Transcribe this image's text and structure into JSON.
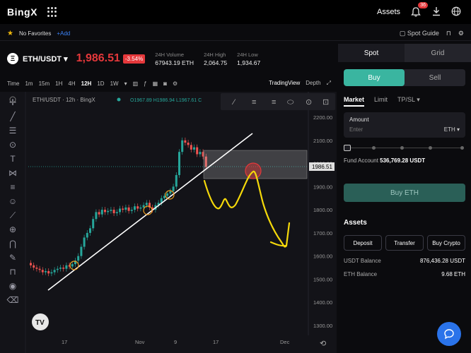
{
  "header": {
    "logo": "BingX",
    "assets_label": "Assets",
    "notification_count": "36"
  },
  "favorites": {
    "no_favorites": "No Favorites",
    "add": "+Add",
    "spot_guide": "Spot Guide"
  },
  "ticker": {
    "coin_glyph": "Ξ",
    "pair": "ETH/USDT",
    "price": "1,986.51",
    "change": "-3.54%",
    "stats": [
      {
        "label": "24H Volume",
        "value": "67943.19 ETH"
      },
      {
        "label": "24H High",
        "value": "2,064.75"
      },
      {
        "label": "24H Low",
        "value": "1,934.67"
      }
    ]
  },
  "chart_toolbar": {
    "time_label": "Time",
    "intervals": [
      "1m",
      "15m",
      "1H",
      "4H",
      "12H",
      "1D",
      "1W"
    ],
    "selected_interval": "12H",
    "tradingview": "TradingView",
    "depth": "Depth"
  },
  "chart": {
    "legend_title": "ETH/USDT · 12h · BingX",
    "ohlc": "O1967.89  H1986.94  L1967.61  C",
    "last_price_tag": "1986.51",
    "y_ticks": [
      "2200.00",
      "2100.00",
      "2000.00",
      "1900.00",
      "1800.00",
      "1700.00",
      "1600.00",
      "1500.00",
      "1400.00",
      "1300.00"
    ],
    "x_ticks": [
      "17",
      "Nov",
      "9",
      "17",
      "Dec"
    ]
  },
  "panel": {
    "tab_spot": "Spot",
    "tab_grid": "Grid",
    "buy": "Buy",
    "sell": "Sell",
    "order_types": [
      "Market",
      "Limit",
      "TP/SL ▾"
    ],
    "amount_label": "Amount",
    "amount_placeholder": "Enter",
    "amount_unit": "ETH ▾",
    "fund_account_label": "Fund Account",
    "fund_account_value": "536,769.28 USDT",
    "buy_eth": "Buy ETH",
    "assets_title": "Assets",
    "asset_buttons": [
      "Deposit",
      "Transfer",
      "Buy Crypto"
    ],
    "balances": [
      {
        "label": "USDT Balance",
        "value": "876,436.28 USDT"
      },
      {
        "label": "ETH Balance",
        "value": "9.68 ETH"
      }
    ]
  },
  "colors": {
    "up": "#26a69a",
    "down": "#ef5350",
    "accent": "#3ab5a0",
    "annotation": "#f5d90a"
  }
}
